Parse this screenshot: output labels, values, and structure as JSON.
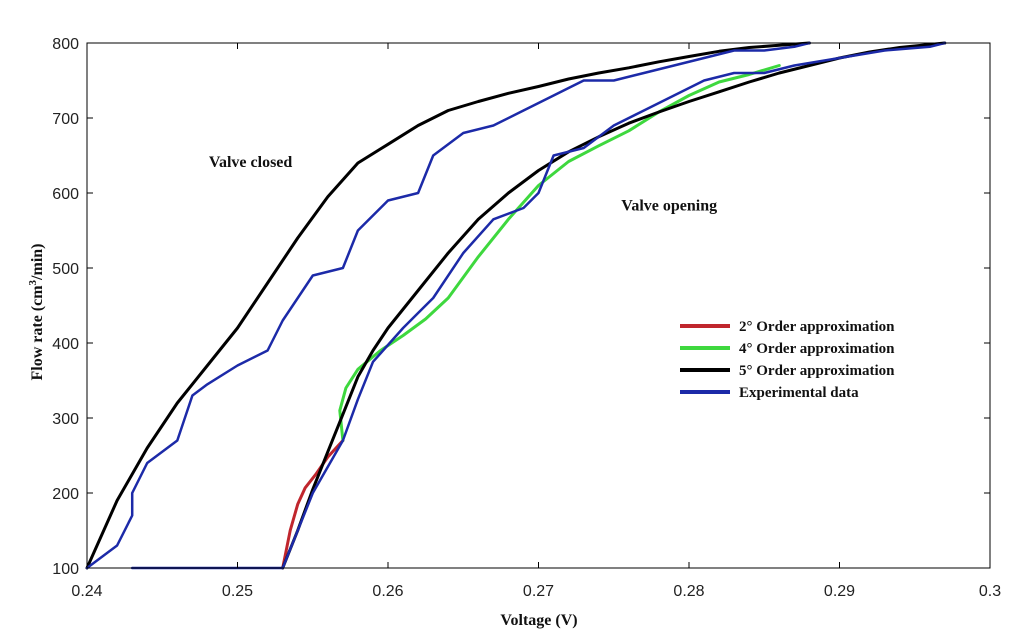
{
  "chart_data": {
    "type": "line",
    "title": "",
    "xlabel": "Voltage (V)",
    "ylabel": "Flow rate  (cm",
    "ylabel_sup": "3",
    "ylabel_tail": "/min)",
    "xlim": [
      0.24,
      0.3
    ],
    "ylim": [
      100,
      800
    ],
    "xticks": [
      0.24,
      0.25,
      0.26,
      0.27,
      0.28,
      0.29,
      0.3
    ],
    "xtick_labels": [
      "0.24",
      "0.25",
      "0.26",
      "0.27",
      "0.28",
      "0.29",
      "0.3"
    ],
    "yticks": [
      100,
      200,
      300,
      400,
      500,
      600,
      700,
      800
    ],
    "ytick_labels": [
      "100",
      "200",
      "300",
      "400",
      "500",
      "600",
      "700",
      "800"
    ],
    "annotations": [
      {
        "text": "Valve closed",
        "x": 0.2481,
        "y": 635
      },
      {
        "text": "Valve opening",
        "x": 0.2755,
        "y": 577
      }
    ],
    "legend_position": "center-right",
    "series": [
      {
        "name": "2° Order approximation",
        "color": "#c0262d",
        "width": 3,
        "x": [
          0.253,
          0.2535,
          0.254,
          0.2545,
          0.2552,
          0.256,
          0.257
        ],
        "y": [
          100,
          150,
          185,
          207,
          225,
          248,
          270
        ]
      },
      {
        "name": "4° Order approximation",
        "color": "#3ed83e",
        "width": 3,
        "x": [
          0.257,
          0.2568,
          0.2572,
          0.258,
          0.2595,
          0.261,
          0.2625,
          0.264,
          0.266,
          0.268,
          0.27,
          0.272,
          0.274,
          0.276,
          0.278,
          0.28,
          0.282,
          0.284,
          0.286
        ],
        "y": [
          270,
          310,
          340,
          365,
          390,
          410,
          432,
          460,
          515,
          565,
          610,
          642,
          663,
          683,
          708,
          730,
          748,
          758,
          770
        ]
      },
      {
        "name": "5° Order approximation",
        "color": "#000000",
        "width": 3,
        "x": [
          0.24,
          0.242,
          0.244,
          0.246,
          0.248,
          0.25,
          0.252,
          0.254,
          0.256,
          0.258,
          0.26,
          0.262,
          0.264,
          0.266,
          0.268,
          0.27,
          0.272,
          0.274,
          0.276,
          0.278,
          0.28,
          0.282,
          0.284,
          0.286,
          0.288,
          0.253,
          0.254,
          0.255,
          0.256,
          0.257,
          0.258,
          0.259,
          0.26,
          0.262,
          0.264,
          0.266,
          0.268,
          0.27,
          0.272,
          0.274,
          0.276,
          0.278,
          0.28,
          0.282,
          0.284,
          0.286,
          0.288,
          0.29,
          0.292,
          0.294,
          0.296,
          0.297
        ],
        "y": [
          100,
          190,
          260,
          320,
          370,
          420,
          480,
          540,
          595,
          640,
          665,
          690,
          710,
          722,
          733,
          742,
          752,
          760,
          767,
          775,
          782,
          789,
          794,
          797,
          800,
          100,
          150,
          205,
          255,
          305,
          355,
          390,
          420,
          470,
          520,
          565,
          600,
          630,
          655,
          675,
          693,
          708,
          722,
          735,
          748,
          760,
          770,
          780,
          788,
          794,
          798,
          800
        ],
        "segments": [
          25,
          27
        ]
      },
      {
        "name": "Experimental data",
        "color": "#1c2aa8",
        "width": 2.5,
        "x": [
          0.24,
          0.242,
          0.243,
          0.243,
          0.244,
          0.246,
          0.247,
          0.248,
          0.25,
          0.252,
          0.253,
          0.255,
          0.257,
          0.258,
          0.26,
          0.262,
          0.263,
          0.265,
          0.267,
          0.269,
          0.271,
          0.272,
          0.273,
          0.275,
          0.277,
          0.279,
          0.281,
          0.283,
          0.285,
          0.287,
          0.288,
          0.243,
          0.253,
          0.255,
          0.257,
          0.258,
          0.259,
          0.261,
          0.262,
          0.263,
          0.265,
          0.267,
          0.269,
          0.27,
          0.271,
          0.273,
          0.275,
          0.277,
          0.279,
          0.281,
          0.283,
          0.285,
          0.287,
          0.29,
          0.293,
          0.296,
          0.297
        ],
        "y": [
          100,
          130,
          170,
          200,
          240,
          270,
          330,
          345,
          370,
          390,
          430,
          490,
          500,
          550,
          590,
          600,
          650,
          680,
          690,
          710,
          730,
          740,
          750,
          750,
          760,
          770,
          780,
          790,
          790,
          795,
          800,
          100,
          100,
          200,
          270,
          325,
          375,
          420,
          440,
          460,
          520,
          565,
          580,
          600,
          650,
          660,
          690,
          710,
          730,
          750,
          760,
          760,
          770,
          780,
          790,
          795,
          800
        ],
        "segments": [
          31,
          26
        ]
      }
    ]
  }
}
